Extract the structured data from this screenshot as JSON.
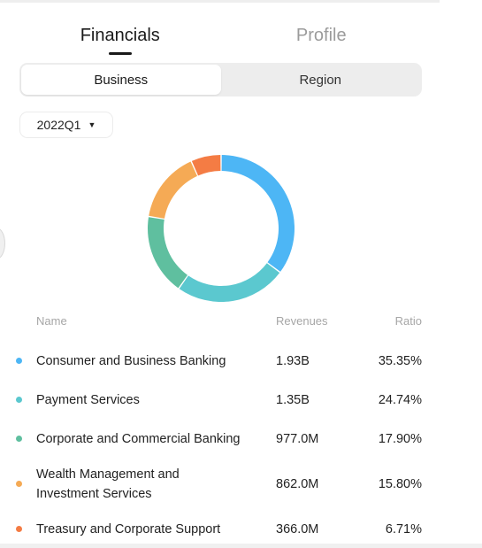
{
  "tabs": [
    {
      "label": "Financials",
      "active": true
    },
    {
      "label": "Profile",
      "active": false
    }
  ],
  "segments": [
    {
      "label": "Business",
      "active": true
    },
    {
      "label": "Region",
      "active": false
    }
  ],
  "period": {
    "value": "2022Q1"
  },
  "table": {
    "headers": {
      "name": "Name",
      "revenues": "Revenues",
      "ratio": "Ratio"
    },
    "rows": [
      {
        "name": "Consumer and Business Banking",
        "revenues": "1.93B",
        "ratio": "35.35%",
        "ratio_value": 35.35,
        "color": "#4db6f5"
      },
      {
        "name": "Payment Services",
        "revenues": "1.35B",
        "ratio": "24.74%",
        "ratio_value": 24.74,
        "color": "#5bc8cf"
      },
      {
        "name": "Corporate and Commercial Banking",
        "revenues": "977.0M",
        "ratio": "17.90%",
        "ratio_value": 17.9,
        "color": "#5fbf9f"
      },
      {
        "name": "Wealth Management and Investment Services",
        "revenues": "862.0M",
        "ratio": "15.80%",
        "ratio_value": 15.8,
        "color": "#f5aa55"
      },
      {
        "name": "Treasury and Corporate Support",
        "revenues": "366.0M",
        "ratio": "6.71%",
        "ratio_value": 6.71,
        "color": "#f47c44"
      }
    ]
  }
}
